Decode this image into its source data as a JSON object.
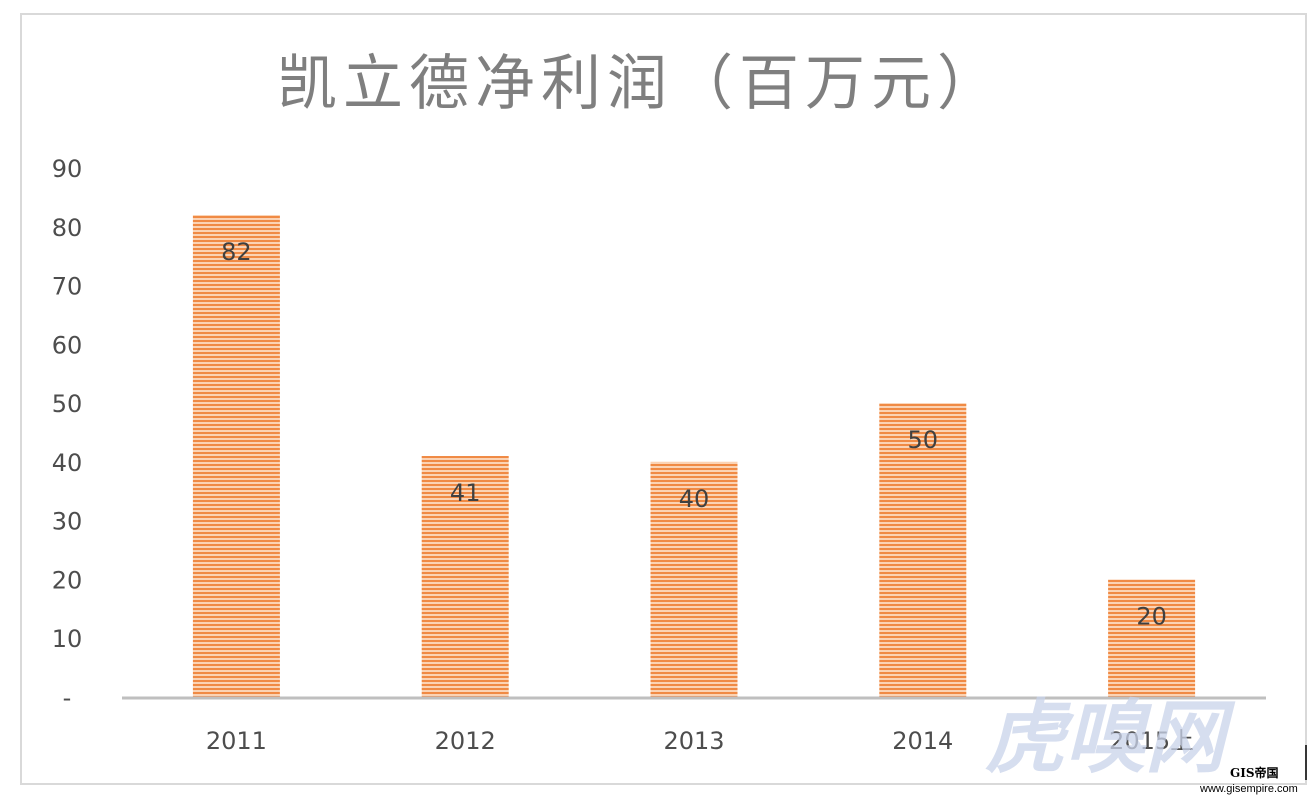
{
  "chart_data": {
    "type": "bar",
    "title": "凯立德净利润（百万元）",
    "categories": [
      "2011",
      "2012",
      "2013",
      "2014",
      "2015上"
    ],
    "values": [
      82,
      41,
      40,
      50,
      20
    ],
    "data_labels": [
      "82",
      "41",
      "40",
      "50",
      "20"
    ],
    "xlabel": "",
    "ylabel": "",
    "ylim": [
      0,
      90
    ],
    "y_ticks": [
      {
        "value": 0,
        "label": "-"
      },
      {
        "value": 10,
        "label": "10"
      },
      {
        "value": 20,
        "label": "20"
      },
      {
        "value": 30,
        "label": "30"
      },
      {
        "value": 40,
        "label": "40"
      },
      {
        "value": 50,
        "label": "50"
      },
      {
        "value": 60,
        "label": "60"
      },
      {
        "value": 70,
        "label": "70"
      },
      {
        "value": 80,
        "label": "80"
      },
      {
        "value": 90,
        "label": "90"
      }
    ],
    "grid": false,
    "legend": "none",
    "bar_color": "#f4a46c",
    "bar_stripe_color": "#fbd6b8",
    "bar_edge_color": "#ed7d31"
  },
  "watermark": {
    "text": "虎嗅网",
    "badge": "GIS帝国",
    "url": "www.gisempire.com"
  }
}
